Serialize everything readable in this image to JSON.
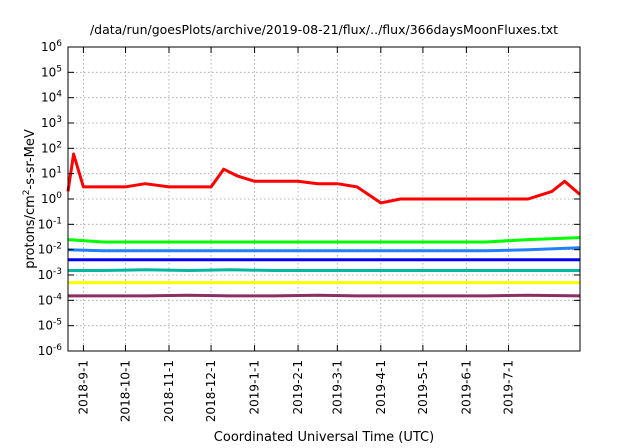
{
  "chart_data": {
    "type": "line",
    "title": "/data/run/goesPlots/archive/2019-08-21/flux/../flux/366daysMoonFluxes.txt",
    "xlabel": "Coordinated Universal Time (UTC)",
    "ylabel": "protons/cm²-s-sr-MeV",
    "ylabel_base": "protons/cm",
    "ylabel_sup": "2",
    "ylabel_rest": "-s-sr-MeV",
    "yscale": "log",
    "ylim": [
      1e-06,
      1000000.0
    ],
    "xlim": [
      "2018-08-21",
      "2019-08-21"
    ],
    "grid": true,
    "y_ticks": [
      {
        "base": "10",
        "exp": "-6"
      },
      {
        "base": "10",
        "exp": "-5"
      },
      {
        "base": "10",
        "exp": "-4"
      },
      {
        "base": "10",
        "exp": "-3"
      },
      {
        "base": "10",
        "exp": "-2"
      },
      {
        "base": "10",
        "exp": "-1"
      },
      {
        "base": "10",
        "exp": "0"
      },
      {
        "base": "10",
        "exp": "1"
      },
      {
        "base": "10",
        "exp": "2"
      },
      {
        "base": "10",
        "exp": "3"
      },
      {
        "base": "10",
        "exp": "4"
      },
      {
        "base": "10",
        "exp": "5"
      },
      {
        "base": "10",
        "exp": "6"
      }
    ],
    "x_ticks": [
      {
        "label": "2018-9-1",
        "date": "2018-09-01"
      },
      {
        "label": "2018-10-1",
        "date": "2018-10-01"
      },
      {
        "label": "2018-11-1",
        "date": "2018-11-01"
      },
      {
        "label": "2018-12-1",
        "date": "2018-12-01"
      },
      {
        "label": "2019-1-1",
        "date": "2019-01-01"
      },
      {
        "label": "2019-2-1",
        "date": "2019-02-01"
      },
      {
        "label": "2019-3-1",
        "date": "2019-03-01"
      },
      {
        "label": "2019-4-1",
        "date": "2019-04-01"
      },
      {
        "label": "2019-5-1",
        "date": "2019-05-01"
      },
      {
        "label": "2019-6-1",
        "date": "2019-06-01"
      },
      {
        "label": "2019-7-1",
        "date": "2019-07-01"
      }
    ],
    "series": [
      {
        "color": "#8b2f63",
        "x": [
          "2018-08-21",
          "2018-09-15",
          "2018-10-15",
          "2018-11-15",
          "2018-12-15",
          "2019-01-15",
          "2019-02-15",
          "2019-03-15",
          "2019-04-15",
          "2019-05-15",
          "2019-06-15",
          "2019-07-15",
          "2019-08-21"
        ],
        "y": [
          0.00015,
          0.00015,
          0.00015,
          0.00016,
          0.00015,
          0.00015,
          0.00016,
          0.00015,
          0.00015,
          0.00015,
          0.00015,
          0.00016,
          0.00015
        ]
      },
      {
        "color": "#ffff00",
        "x": [
          "2018-08-21",
          "2018-09-15",
          "2018-10-15",
          "2018-11-15",
          "2018-12-15",
          "2019-01-15",
          "2019-02-15",
          "2019-03-15",
          "2019-04-15",
          "2019-05-15",
          "2019-06-15",
          "2019-07-15",
          "2019-08-21"
        ],
        "y": [
          0.0005,
          0.0005,
          0.0005,
          0.0005,
          0.0005,
          0.0005,
          0.0005,
          0.0005,
          0.0005,
          0.0005,
          0.0005,
          0.0005,
          0.0005
        ]
      },
      {
        "color": "#00b8a0",
        "x": [
          "2018-08-21",
          "2018-09-15",
          "2018-10-15",
          "2018-11-15",
          "2018-12-15",
          "2019-01-15",
          "2019-02-15",
          "2019-03-15",
          "2019-04-15",
          "2019-05-15",
          "2019-06-15",
          "2019-07-15",
          "2019-08-21"
        ],
        "y": [
          0.0015,
          0.0015,
          0.0016,
          0.0015,
          0.0016,
          0.0015,
          0.0015,
          0.0015,
          0.0015,
          0.0015,
          0.0015,
          0.0015,
          0.0015
        ]
      },
      {
        "color": "#00ff00",
        "x": [
          "2018-08-21",
          "2018-09-15",
          "2018-10-15",
          "2018-11-15",
          "2018-12-15",
          "2019-01-15",
          "2019-02-15",
          "2019-03-15",
          "2019-04-15",
          "2019-05-15",
          "2019-06-15",
          "2019-07-15",
          "2019-08-21"
        ],
        "y": [
          0.025,
          0.02,
          0.02,
          0.02,
          0.02,
          0.02,
          0.02,
          0.02,
          0.02,
          0.02,
          0.02,
          0.025,
          0.03
        ]
      },
      {
        "color": "#2080ff",
        "x": [
          "2018-08-21",
          "2018-09-15",
          "2018-10-15",
          "2018-11-15",
          "2018-12-15",
          "2019-01-15",
          "2019-02-15",
          "2019-03-15",
          "2019-04-15",
          "2019-05-15",
          "2019-06-15",
          "2019-07-15",
          "2019-08-21"
        ],
        "y": [
          0.01,
          0.009,
          0.009,
          0.009,
          0.009,
          0.009,
          0.009,
          0.009,
          0.009,
          0.009,
          0.009,
          0.01,
          0.012
        ]
      },
      {
        "color": "#0000ff",
        "x": [
          "2018-08-21",
          "2018-09-15",
          "2018-10-15",
          "2018-11-15",
          "2018-12-15",
          "2019-01-15",
          "2019-02-15",
          "2019-03-15",
          "2019-04-15",
          "2019-05-15",
          "2019-06-15",
          "2019-07-15",
          "2019-08-21"
        ],
        "y": [
          0.004,
          0.004,
          0.004,
          0.004,
          0.004,
          0.004,
          0.004,
          0.004,
          0.004,
          0.004,
          0.004,
          0.004,
          0.004
        ]
      },
      {
        "color": "#ff0000",
        "x": [
          "2018-08-21",
          "2018-08-25",
          "2018-09-01",
          "2018-09-15",
          "2018-10-01",
          "2018-10-15",
          "2018-11-01",
          "2018-11-15",
          "2018-12-01",
          "2018-12-10",
          "2018-12-20",
          "2019-01-01",
          "2019-01-15",
          "2019-02-01",
          "2019-02-15",
          "2019-03-01",
          "2019-03-15",
          "2019-04-01",
          "2019-04-15",
          "2019-05-01",
          "2019-05-15",
          "2019-06-01",
          "2019-06-15",
          "2019-07-01",
          "2019-07-15",
          "2019-08-01",
          "2019-08-10",
          "2019-08-21"
        ],
        "y": [
          2,
          60,
          3,
          3,
          3,
          4,
          3,
          3,
          3,
          15,
          8,
          5,
          5,
          5,
          4,
          4,
          3,
          0.7,
          1,
          1,
          1,
          1,
          1,
          1,
          1,
          2,
          5,
          1.5
        ]
      }
    ]
  }
}
